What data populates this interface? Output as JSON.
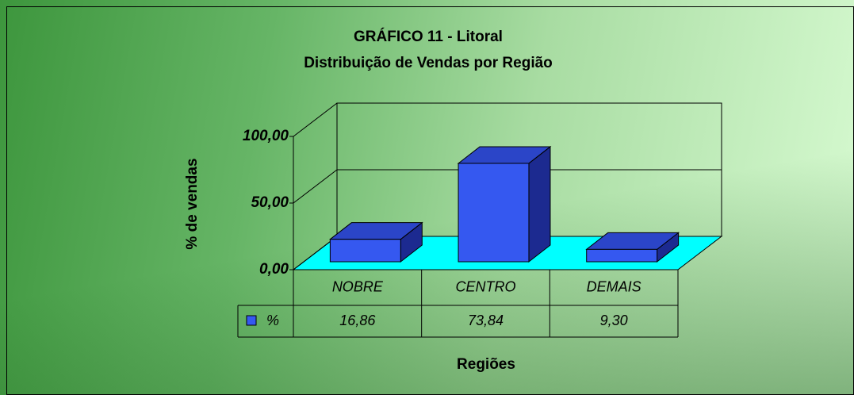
{
  "chart_data": {
    "type": "bar3d",
    "title": "GRÁFICO 11 - Litoral",
    "subtitle": "Distribuição de Vendas por Região",
    "y_label": "% de vendas",
    "x_label": "Regiões",
    "categories": [
      "NOBRE",
      "CENTRO",
      "DEMAIS"
    ],
    "series": [
      {
        "name": "%",
        "color": "#3558f0",
        "values": [
          16.86,
          73.84,
          9.3
        ],
        "value_labels": [
          "16,86",
          "73,84",
          "9,30"
        ]
      }
    ],
    "ylim": [
      0,
      100
    ],
    "yticks": [
      {
        "value": 0,
        "label": "0,00"
      },
      {
        "value": 50,
        "label": "50,00"
      },
      {
        "value": 100,
        "label": "100,00"
      }
    ],
    "grid": true,
    "floor_color": "#00ffff"
  }
}
